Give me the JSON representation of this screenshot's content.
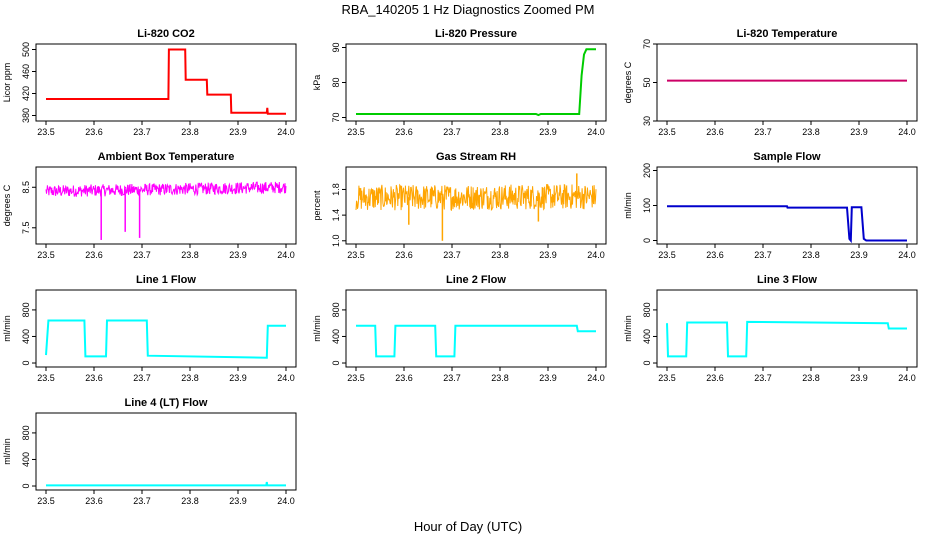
{
  "figure": {
    "title": "RBA_140205  1 Hz Diagnostics Zoomed PM",
    "xlabel": "Hour of Day (UTC)"
  },
  "chart_data": [
    {
      "type": "line",
      "title": "Li-820 CO2",
      "ylabel": "Licor ppm",
      "color": "#ff0000",
      "xlim": [
        23.5,
        24.0
      ],
      "ylim": [
        370,
        510
      ],
      "yticks": [
        380,
        420,
        460,
        500
      ],
      "xticks": [
        23.5,
        23.6,
        23.7,
        23.8,
        23.9,
        24.0
      ],
      "series": [
        {
          "name": "CO2",
          "x": [
            23.5,
            23.755,
            23.756,
            23.79,
            23.791,
            23.835,
            23.836,
            23.885,
            23.886,
            23.96,
            23.961,
            23.962,
            24.0
          ],
          "y": [
            410,
            410,
            500,
            500,
            445,
            445,
            418,
            418,
            385,
            385,
            394,
            383,
            383
          ]
        }
      ]
    },
    {
      "type": "line",
      "title": "Li-820 Pressure",
      "ylabel": "kPa",
      "color": "#00cc00",
      "xlim": [
        23.5,
        24.0
      ],
      "ylim": [
        69,
        91
      ],
      "yticks": [
        70,
        80,
        90
      ],
      "xticks": [
        23.5,
        23.6,
        23.7,
        23.8,
        23.9,
        24.0
      ],
      "series": [
        {
          "name": "Pressure",
          "x": [
            23.5,
            23.875,
            23.88,
            23.885,
            23.96,
            23.965,
            23.97,
            23.975,
            23.98,
            24.0
          ],
          "y": [
            71,
            71,
            70.7,
            71,
            71,
            71,
            82,
            88,
            89.5,
            89.5
          ]
        }
      ]
    },
    {
      "type": "line",
      "title": "Li-820 Temperature",
      "ylabel": "degrees C",
      "color": "#cc0066",
      "xlim": [
        23.5,
        24.0
      ],
      "ylim": [
        30,
        70
      ],
      "yticks": [
        30,
        50,
        70
      ],
      "xticks": [
        23.5,
        23.6,
        23.7,
        23.8,
        23.9,
        24.0
      ],
      "series": [
        {
          "name": "Temperature",
          "x": [
            23.5,
            24.0
          ],
          "y": [
            51,
            51
          ]
        }
      ]
    },
    {
      "type": "line",
      "title": "Ambient Box Temperature",
      "ylabel": "degrees C",
      "color": "#ff00ff",
      "xlim": [
        23.5,
        24.0
      ],
      "ylim": [
        7.1,
        9.0
      ],
      "yticks": [
        7.5,
        8.5
      ],
      "xticks": [
        23.5,
        23.6,
        23.7,
        23.8,
        23.9,
        24.0
      ],
      "noise": {
        "base": 8.45,
        "amplitude": 0.15,
        "drift": 0.1
      },
      "spikes": [
        {
          "x": 23.615,
          "y": 7.2
        },
        {
          "x": 23.665,
          "y": 7.4
        },
        {
          "x": 23.695,
          "y": 7.25
        }
      ],
      "series": [
        {
          "name": "Ambient temp",
          "x": [
            23.5,
            24.0
          ],
          "y": [
            8.35,
            8.55
          ]
        }
      ]
    },
    {
      "type": "line",
      "title": "Gas Stream RH",
      "ylabel": "percent",
      "color": "#ffa500",
      "xlim": [
        23.5,
        24.0
      ],
      "ylim": [
        0.95,
        2.15
      ],
      "yticks": [
        1.0,
        1.4,
        1.8
      ],
      "xticks": [
        23.5,
        23.6,
        23.7,
        23.8,
        23.9,
        24.0
      ],
      "noise": {
        "base": 1.68,
        "amplitude": 0.2,
        "drift": 0.02
      },
      "spikes": [
        {
          "x": 23.68,
          "y": 1.0
        },
        {
          "x": 23.61,
          "y": 1.25
        },
        {
          "x": 23.88,
          "y": 1.3
        },
        {
          "x": 23.96,
          "y": 2.05
        }
      ],
      "series": [
        {
          "name": "RH",
          "x": [
            23.5,
            24.0
          ],
          "y": [
            1.65,
            1.75
          ]
        }
      ]
    },
    {
      "type": "line",
      "title": "Sample Flow",
      "ylabel": "ml/min",
      "color": "#0000cc",
      "xlim": [
        23.5,
        24.0
      ],
      "ylim": [
        -10,
        210
      ],
      "yticks": [
        0,
        100,
        200
      ],
      "xticks": [
        23.5,
        23.6,
        23.7,
        23.8,
        23.9,
        24.0
      ],
      "series": [
        {
          "name": "Sample flow",
          "x": [
            23.5,
            23.75,
            23.751,
            23.875,
            23.88,
            23.883,
            23.885,
            23.89,
            23.905,
            23.91,
            23.915,
            24.0
          ],
          "y": [
            98,
            98,
            94,
            94,
            5,
            0,
            95,
            95,
            95,
            5,
            0,
            0
          ]
        }
      ]
    },
    {
      "type": "line",
      "title": "Line 1 Flow",
      "ylabel": "ml/min",
      "color": "#00ffff",
      "xlim": [
        23.5,
        24.0
      ],
      "ylim": [
        -60,
        1100
      ],
      "yticks": [
        0,
        400,
        800
      ],
      "xticks": [
        23.5,
        23.6,
        23.7,
        23.8,
        23.9,
        24.0
      ],
      "series": [
        {
          "name": "Line 1",
          "x": [
            23.5,
            23.505,
            23.58,
            23.582,
            23.625,
            23.627,
            23.71,
            23.712,
            23.96,
            23.962,
            24.0
          ],
          "y": [
            120,
            640,
            640,
            100,
            100,
            640,
            640,
            110,
            80,
            560,
            560
          ]
        }
      ]
    },
    {
      "type": "line",
      "title": "Line 2 Flow",
      "ylabel": "ml/min",
      "color": "#00ffff",
      "xlim": [
        23.5,
        24.0
      ],
      "ylim": [
        -60,
        1100
      ],
      "yticks": [
        0,
        400,
        800
      ],
      "xticks": [
        23.5,
        23.6,
        23.7,
        23.8,
        23.9,
        24.0
      ],
      "series": [
        {
          "name": "Line 2",
          "x": [
            23.5,
            23.54,
            23.542,
            23.58,
            23.582,
            23.665,
            23.667,
            23.705,
            23.707,
            23.96,
            23.962,
            24.0
          ],
          "y": [
            560,
            560,
            100,
            100,
            560,
            560,
            100,
            100,
            560,
            560,
            480,
            480
          ]
        }
      ]
    },
    {
      "type": "line",
      "title": "Line 3 Flow",
      "ylabel": "ml/min",
      "color": "#00ffff",
      "xlim": [
        23.5,
        24.0
      ],
      "ylim": [
        -60,
        1100
      ],
      "yticks": [
        0,
        400,
        800
      ],
      "xticks": [
        23.5,
        23.6,
        23.7,
        23.8,
        23.9,
        24.0
      ],
      "series": [
        {
          "name": "Line 3",
          "x": [
            23.5,
            23.502,
            23.54,
            23.542,
            23.625,
            23.627,
            23.665,
            23.667,
            23.96,
            23.962,
            24.0
          ],
          "y": [
            600,
            100,
            100,
            610,
            610,
            100,
            100,
            620,
            600,
            520,
            520
          ]
        }
      ]
    },
    {
      "type": "line",
      "title": "Line 4 (LT) Flow",
      "ylabel": "ml/min",
      "color": "#00ffff",
      "xlim": [
        23.5,
        24.0
      ],
      "ylim": [
        -60,
        1100
      ],
      "yticks": [
        0,
        400,
        800
      ],
      "xticks": [
        23.5,
        23.6,
        23.7,
        23.8,
        23.9,
        24.0
      ],
      "series": [
        {
          "name": "Line 4",
          "x": [
            23.5,
            23.959,
            23.96,
            23.961,
            24.0
          ],
          "y": [
            10,
            10,
            60,
            10,
            10
          ]
        }
      ]
    }
  ]
}
